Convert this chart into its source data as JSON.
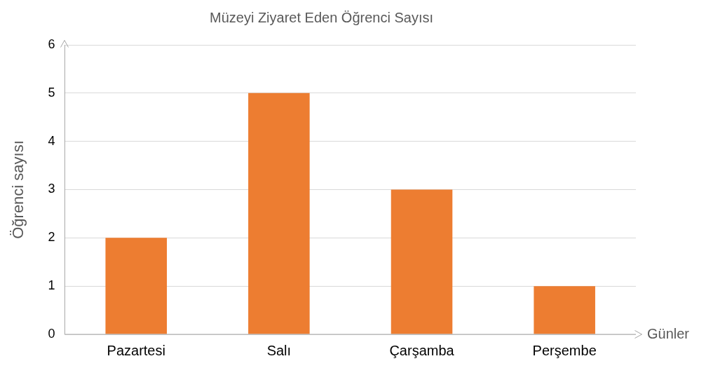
{
  "chart_data": {
    "type": "bar",
    "title": "Müzeyi Ziyaret Eden Öğrenci Sayısı",
    "xlabel": "Günler",
    "ylabel": "Öğrenci sayısı",
    "categories": [
      "Pazartesi",
      "Salı",
      "Çarşamba",
      "Perşembe"
    ],
    "values": [
      2,
      5,
      3,
      1
    ],
    "color": "#ed7d31",
    "ylim": [
      0,
      6
    ],
    "yticks": [
      0,
      1,
      2,
      3,
      4,
      5,
      6
    ],
    "grid": "y"
  }
}
